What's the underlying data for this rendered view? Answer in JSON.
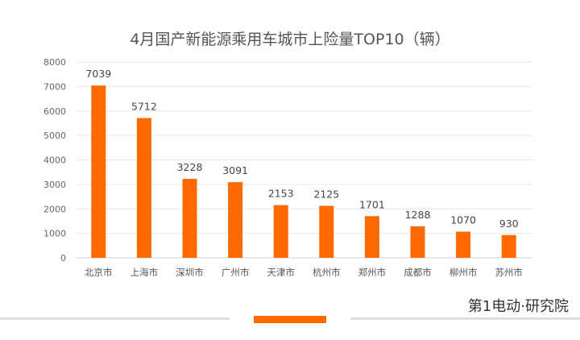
{
  "chart_data": {
    "type": "bar",
    "title": "4月国产新能源乘用车城市上险量TOP10（辆）",
    "categories": [
      "北京市",
      "上海市",
      "深圳市",
      "广州市",
      "天津市",
      "杭州市",
      "郑州市",
      "成都市",
      "柳州市",
      "苏州市"
    ],
    "values": [
      7039,
      5712,
      3228,
      3091,
      2153,
      2125,
      1701,
      1288,
      1070,
      930
    ],
    "ylim": [
      0,
      8000
    ],
    "yticks": [
      0,
      1000,
      2000,
      3000,
      4000,
      5000,
      6000,
      7000,
      8000
    ],
    "grid": true,
    "data_labels": true,
    "bar_color": "#ff6a00"
  },
  "logo": {
    "text": "第1电动·研究院"
  },
  "accent_color": "#ff6a00"
}
